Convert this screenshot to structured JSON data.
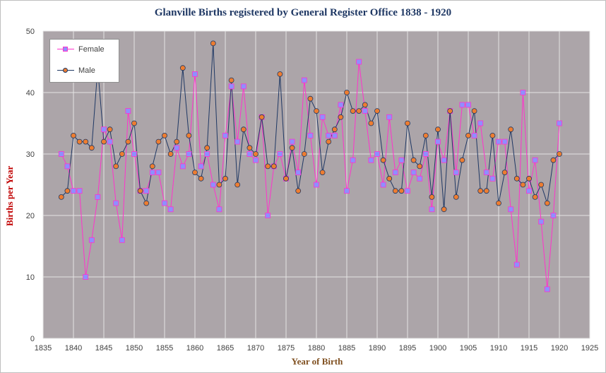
{
  "title": "Glanville Births registered by General Register Office 1838 - 1920",
  "chart_data": {
    "type": "line",
    "title": "Glanville Births registered by General Register Office 1838 - 1920",
    "xlabel": "Year of Birth",
    "ylabel": "Births per Year",
    "xlim": [
      1835,
      1925
    ],
    "ylim": [
      0,
      50
    ],
    "x_ticks": [
      1835,
      1840,
      1845,
      1850,
      1855,
      1860,
      1865,
      1870,
      1875,
      1880,
      1885,
      1890,
      1895,
      1900,
      1905,
      1910,
      1915,
      1920,
      1925
    ],
    "y_ticks": [
      0,
      10,
      20,
      30,
      40,
      50
    ],
    "grid": true,
    "legend_position": "top-left",
    "x": [
      1838,
      1839,
      1840,
      1841,
      1842,
      1843,
      1844,
      1845,
      1846,
      1847,
      1848,
      1849,
      1850,
      1851,
      1852,
      1853,
      1854,
      1855,
      1856,
      1857,
      1858,
      1859,
      1860,
      1861,
      1862,
      1863,
      1864,
      1865,
      1866,
      1867,
      1868,
      1869,
      1870,
      1871,
      1872,
      1873,
      1874,
      1875,
      1876,
      1877,
      1878,
      1879,
      1880,
      1881,
      1882,
      1883,
      1884,
      1885,
      1886,
      1887,
      1888,
      1889,
      1890,
      1891,
      1892,
      1893,
      1894,
      1895,
      1896,
      1897,
      1898,
      1899,
      1900,
      1901,
      1902,
      1903,
      1904,
      1905,
      1906,
      1907,
      1908,
      1909,
      1910,
      1911,
      1912,
      1913,
      1914,
      1915,
      1916,
      1917,
      1918,
      1919,
      1920
    ],
    "series": [
      {
        "name": "Female",
        "color": "#ff33cc",
        "marker": "square",
        "marker_color": "#8f8fff",
        "values": [
          30,
          28,
          24,
          24,
          10,
          16,
          23,
          34,
          32,
          22,
          16,
          37,
          30,
          24,
          24,
          27,
          27,
          22,
          21,
          31,
          28,
          30,
          43,
          28,
          30,
          25,
          21,
          33,
          41,
          32,
          41,
          30,
          29,
          36,
          20,
          28,
          30,
          26,
          32,
          27,
          42,
          33,
          25,
          36,
          33,
          33,
          38,
          24,
          29,
          45,
          37,
          29,
          30,
          25,
          36,
          27,
          29,
          24,
          27,
          26,
          30,
          21,
          32,
          29,
          37,
          27,
          38,
          38,
          33,
          35,
          27,
          26,
          32,
          32,
          21,
          12,
          40,
          24,
          29,
          19,
          8,
          20,
          35
        ]
      },
      {
        "name": "Male",
        "color": "#1f3864",
        "marker": "circle",
        "marker_color": "#ed7d31",
        "values": [
          23,
          24,
          33,
          32,
          32,
          31,
          44,
          32,
          34,
          28,
          30,
          32,
          35,
          24,
          22,
          28,
          32,
          33,
          30,
          32,
          44,
          33,
          27,
          26,
          31,
          48,
          25,
          26,
          42,
          25,
          34,
          31,
          30,
          36,
          28,
          28,
          43,
          26,
          31,
          24,
          30,
          39,
          37,
          27,
          32,
          34,
          36,
          40,
          37,
          37,
          38,
          35,
          37,
          29,
          26,
          24,
          24,
          35,
          29,
          28,
          33,
          23,
          34,
          21,
          37,
          23,
          29,
          33,
          37,
          24,
          24,
          33,
          22,
          27,
          34,
          26,
          25,
          26,
          23,
          25,
          22,
          29,
          30
        ]
      }
    ]
  }
}
